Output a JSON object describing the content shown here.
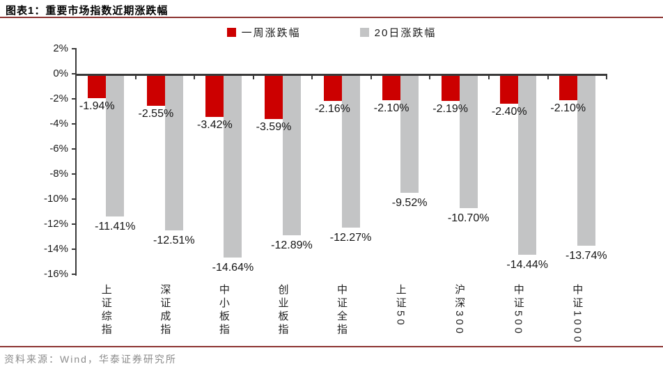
{
  "header": {
    "title": "图表1：重要市场指数近期涨跌幅"
  },
  "chart_data": {
    "type": "bar",
    "title": "重要市场指数近期涨跌幅",
    "categories": [
      "上证综指",
      "深证成指",
      "中小板指",
      "创业板指",
      "中证全指",
      "上证50",
      "沪深300",
      "中证500",
      "中证1000"
    ],
    "series": [
      {
        "name": "一周涨跌幅",
        "color": "#cc0000",
        "values": [
          -1.94,
          -2.55,
          -3.42,
          -3.59,
          -2.16,
          -2.1,
          -2.19,
          -2.4,
          -2.1
        ],
        "labels": [
          "-1.94%",
          "-2.55%",
          "-3.42%",
          "-3.59%",
          "-2.16%",
          "-2.10%",
          "-2.19%",
          "-2.40%",
          "-2.10%"
        ]
      },
      {
        "name": "20日涨跌幅",
        "color": "#c3c4c5",
        "values": [
          -11.41,
          -12.51,
          -14.64,
          -12.89,
          -12.27,
          -9.52,
          -10.7,
          -14.44,
          -13.74
        ],
        "labels": [
          "-11.41%",
          "-12.51%",
          "-14.64%",
          "-12.89%",
          "-12.27%",
          "-9.52%",
          "-10.70%",
          "-14.44%",
          "-13.74%"
        ]
      }
    ],
    "xlabel": "",
    "ylabel": "",
    "ylim": [
      -16,
      2
    ],
    "ytick_step": 2,
    "yticks": [
      "2%",
      "0%",
      "-2%",
      "-4%",
      "-6%",
      "-8%",
      "-10%",
      "-12%",
      "-14%",
      "-16%"
    ],
    "grid": false,
    "legend_position": "top-center"
  },
  "footer": {
    "source": "资料来源：Wind，华泰证券研究所"
  },
  "colors": {
    "bar_week": "#cc0000",
    "bar_20day": "#c3c4c5",
    "rule": "#8b3230",
    "axis": "#3a3a3a",
    "value_label": "#141414",
    "source_text": "#8c8c8c"
  }
}
